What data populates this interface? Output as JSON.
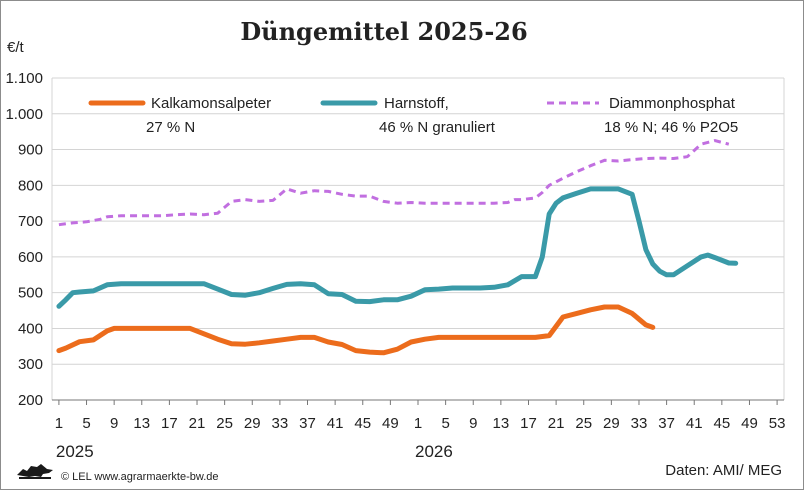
{
  "chart_data": {
    "type": "line",
    "title": "Düngemittel 2025-26",
    "ylabel": "€/t",
    "ylim": [
      200,
      1100
    ],
    "yticks": [
      200,
      300,
      400,
      500,
      600,
      700,
      800,
      900,
      1000,
      1100
    ],
    "ytick_labels": [
      "200",
      "300",
      "400",
      "500",
      "600",
      "700",
      "800",
      "900",
      "1.000",
      "1.100"
    ],
    "xlim": [
      0,
      106
    ],
    "xticks": [
      1,
      5,
      9,
      13,
      17,
      21,
      25,
      29,
      33,
      37,
      41,
      45,
      49,
      53,
      57,
      61,
      65,
      69,
      73,
      77,
      81,
      85,
      89,
      93,
      97,
      101,
      105
    ],
    "xtick_labels": [
      "1",
      "5",
      "9",
      "13",
      "17",
      "21",
      "25",
      "29",
      "33",
      "37",
      "41",
      "45",
      "49",
      "1",
      "5",
      "9",
      "13",
      "17",
      "21",
      "25",
      "29",
      "33",
      "37",
      "41",
      "45",
      "49",
      "53"
    ],
    "year_labels": [
      {
        "text": "2025",
        "x": 1
      },
      {
        "text": "2026",
        "x": 53
      }
    ],
    "grid": true,
    "legend_position": "top",
    "series": [
      {
        "name": "Kalkamonsalpeter",
        "subname": "27 % N",
        "color": "#ec6c1c",
        "style": "solid",
        "x": [
          1,
          2,
          4,
          6,
          8,
          9,
          10,
          12,
          14,
          16,
          18,
          20,
          22,
          24,
          26,
          28,
          30,
          32,
          34,
          36,
          38,
          40,
          42,
          44,
          46,
          48,
          50,
          52,
          54,
          56,
          58,
          60,
          62,
          64,
          66,
          68,
          70,
          72,
          74,
          76,
          78,
          80,
          82,
          84,
          86,
          87
        ],
        "y": [
          338,
          345,
          363,
          368,
          393,
          400,
          400,
          400,
          400,
          400,
          400,
          400,
          385,
          370,
          357,
          356,
          360,
          365,
          370,
          375,
          375,
          362,
          355,
          338,
          334,
          332,
          342,
          362,
          370,
          375,
          375,
          375,
          375,
          375,
          375,
          375,
          375,
          380,
          432,
          442,
          452,
          460,
          460,
          442,
          410,
          403
        ]
      },
      {
        "name": "Harnstoff,",
        "subname": "46 % N granuliert",
        "color": "#3a9aa8",
        "style": "solid",
        "x": [
          1,
          2,
          3,
          4,
          6,
          8,
          10,
          12,
          14,
          16,
          18,
          20,
          22,
          24,
          26,
          28,
          30,
          32,
          34,
          36,
          38,
          40,
          42,
          44,
          46,
          48,
          50,
          52,
          54,
          56,
          58,
          60,
          62,
          64,
          66,
          68,
          70,
          71,
          72,
          73,
          74,
          76,
          78,
          80,
          82,
          84,
          85,
          86,
          87,
          88,
          89,
          90,
          92,
          94,
          95,
          96,
          98,
          99
        ],
        "y": [
          462,
          480,
          500,
          502,
          505,
          522,
          525,
          525,
          525,
          525,
          525,
          525,
          525,
          510,
          495,
          493,
          500,
          512,
          523,
          525,
          522,
          497,
          495,
          476,
          475,
          480,
          480,
          490,
          508,
          510,
          513,
          513,
          513,
          515,
          522,
          545,
          545,
          600,
          720,
          750,
          765,
          778,
          790,
          790,
          790,
          775,
          700,
          620,
          580,
          560,
          550,
          550,
          575,
          600,
          605,
          598,
          583,
          582
        ]
      },
      {
        "name": "Diammonphosphat",
        "subname": "18 % N; 46 % P2O5",
        "color": "#c16fe0",
        "style": "dashed",
        "x": [
          1,
          3,
          5,
          7,
          8,
          10,
          12,
          14,
          16,
          18,
          20,
          22,
          24,
          26,
          28,
          30,
          32,
          34,
          36,
          38,
          40,
          42,
          44,
          46,
          48,
          50,
          52,
          54,
          56,
          58,
          60,
          62,
          64,
          66,
          67,
          68,
          70,
          71,
          72,
          73,
          74,
          76,
          78,
          80,
          82,
          84,
          86,
          88,
          90,
          92,
          94,
          96,
          98
        ],
        "y": [
          690,
          695,
          698,
          705,
          712,
          715,
          715,
          715,
          715,
          718,
          720,
          718,
          722,
          755,
          760,
          755,
          758,
          790,
          778,
          785,
          783,
          775,
          770,
          770,
          755,
          750,
          752,
          750,
          750,
          750,
          750,
          750,
          750,
          752,
          760,
          760,
          765,
          780,
          800,
          810,
          820,
          838,
          855,
          870,
          868,
          872,
          875,
          876,
          875,
          880,
          915,
          925,
          915
        ]
      }
    ]
  },
  "footer": {
    "logo": "lion-logo",
    "credit": "© LEL www.agrarmaerkte-bw.de",
    "source": "Daten: AMI/ MEG"
  }
}
